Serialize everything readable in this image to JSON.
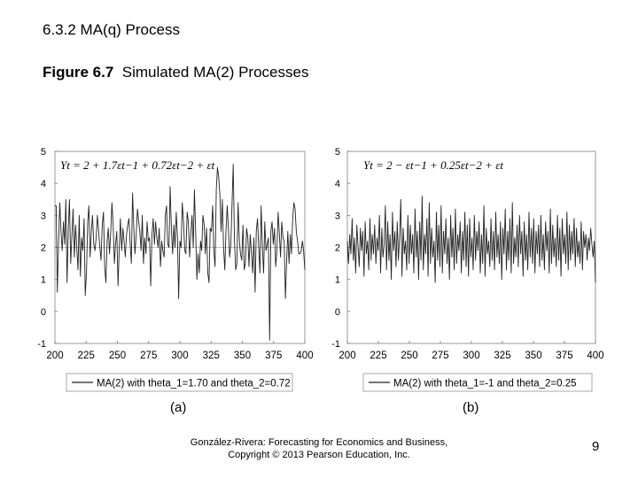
{
  "slide": {
    "section_title": "6.3.2 MA(q) Process",
    "figure_caption_bold": "Figure 6.7",
    "figure_caption_text": "Simulated MA(2) Processes",
    "footer_line1": "González-Rivera: Forecasting for Economics and Business,",
    "footer_line2": "Copyright © 2013 Pearson Education, Inc.",
    "page_number": "9"
  },
  "chart_data": [
    {
      "type": "line",
      "panel_label": "(a)",
      "equation": "Yt = 2 + 1.7εt−1 + 0.72εt−2 + εt",
      "legend": "MA(2) with theta_1=1.70 and theta_2=0.72",
      "x_ticks": [
        "200",
        "225",
        "250",
        "275",
        "300",
        "325",
        "350",
        "375",
        "400"
      ],
      "y_ticks": [
        "5",
        "4",
        "3",
        "2",
        "1",
        "0",
        "-1"
      ],
      "xlim": [
        200,
        400
      ],
      "ylim": [
        -1,
        5
      ],
      "mean_line": 2,
      "series": [
        {
          "name": "MA(2) with theta_1=1.70 and theta_2=0.72",
          "x_start": 200,
          "values": [
            3.3,
            3.3,
            0.6,
            2.2,
            3.4,
            2.5,
            1.9,
            2.8,
            2.1,
            3.5,
            0.9,
            2.6,
            3.5,
            1.5,
            2.4,
            3.2,
            1.7,
            2.7,
            2.0,
            1.3,
            3.0,
            1.1,
            2.3,
            1.9,
            2.9,
            0.5,
            1.2,
            2.8,
            3.3,
            1.7,
            2.5,
            3.0,
            2.1,
            1.9,
            2.3,
            3.0,
            2.5,
            2.0,
            1.6,
            2.7,
            3.1,
            1.4,
            0.9,
            2.2,
            2.6,
            1.8,
            2.5,
            3.4,
            2.7,
            1.5,
            2.1,
            2.5,
            0.8,
            2.0,
            2.9,
            1.9,
            2.6,
            2.2,
            1.7,
            2.4,
            2.7,
            2.9,
            2.1,
            1.5,
            3.7,
            2.6,
            1.8,
            2.4,
            3.2,
            2.8,
            2.5,
            1.9,
            3.0,
            1.5,
            2.3,
            1.8,
            2.8,
            2.2,
            2.3,
            0.8,
            2.4,
            2.9,
            2.1,
            2.8,
            2.3,
            2.0,
            2.6,
            1.4,
            2.2,
            1.9,
            1.7,
            3.0,
            3.3,
            2.1,
            2.0,
            3.9,
            2.6,
            1.8,
            2.7,
            2.0,
            3.1,
            2.3,
            0.4,
            2.2,
            2.0,
            3.4,
            2.8,
            1.9,
            1.8,
            3.1,
            2.8,
            1.7,
            2.4,
            3.0,
            2.0,
            3.8,
            2.5,
            1.0,
            1.8,
            1.2,
            2.2,
            1.9,
            3.0,
            2.7,
            1.8,
            2.6,
            1.2,
            0.9,
            2.6,
            2.5,
            3.3,
            1.9,
            1.4,
            3.8,
            4.5,
            4.2,
            3.6,
            2.5,
            3.5,
            2.0,
            1.3,
            2.5,
            3.3,
            2.6,
            1.7,
            2.1,
            3.4,
            4.6,
            2.2,
            1.3,
            1.5,
            3.4,
            2.2,
            1.8,
            1.6,
            2.7,
            1.3,
            1.5,
            2.6,
            2.3,
            1.4,
            2.4,
            1.8,
            1.2,
            2.3,
            0.6,
            2.5,
            2.9,
            2.0,
            1.2,
            3.3,
            2.0,
            1.2,
            2.8,
            1.9,
            2.1,
            2.3,
            -0.9,
            2.5,
            2.8,
            2.1,
            2.6,
            1.4,
            1.9,
            3.1,
            2.4,
            1.7,
            2.8,
            2.3,
            2.2,
            0.4,
            1.6,
            2.5,
            1.5,
            2.4,
            1.8,
            2.9,
            3.4,
            3.2,
            2.5,
            2.2,
            1.8,
            1.8,
            1.9,
            2.2,
            1.9,
            1.3
          ]
        }
      ]
    },
    {
      "type": "line",
      "panel_label": "(b)",
      "equation": "Yt = 2 − εt−1 + 0.25εt−2 + εt",
      "legend": "MA(2) with theta_1=-1 and theta_2=0.25",
      "x_ticks": [
        "200",
        "225",
        "250",
        "275",
        "300",
        "325",
        "350",
        "375",
        "400"
      ],
      "y_ticks": [
        "5",
        "4",
        "3",
        "2",
        "1",
        "0",
        "-1"
      ],
      "xlim": [
        200,
        400
      ],
      "ylim": [
        -1,
        5
      ],
      "mean_line": null,
      "series": [
        {
          "name": "MA(2) with theta_1=-1 and theta_2=0.25",
          "x_start": 200,
          "values": [
            2.2,
            1.5,
            2.4,
            1.8,
            2.9,
            1.6,
            2.3,
            1.2,
            2.7,
            2.0,
            1.4,
            2.6,
            1.9,
            2.5,
            1.1,
            2.8,
            1.8,
            2.2,
            1.3,
            2.9,
            1.6,
            2.4,
            1.8,
            2.7,
            1.5,
            2.3,
            1.9,
            3.0,
            1.2,
            2.6,
            1.7,
            2.1,
            3.3,
            1.3,
            2.8,
            1.6,
            2.4,
            1.0,
            3.1,
            1.9,
            2.5,
            1.4,
            2.8,
            1.6,
            2.3,
            3.5,
            1.1,
            2.6,
            1.8,
            2.2,
            1.3,
            3.0,
            1.5,
            2.7,
            1.8,
            2.4,
            1.2,
            3.2,
            1.7,
            2.5,
            1.0,
            2.8,
            1.6,
            3.6,
            1.3,
            2.4,
            1.8,
            2.9,
            1.1,
            3.4,
            1.5,
            2.6,
            1.7,
            2.2,
            0.9,
            3.1,
            1.6,
            2.7,
            1.4,
            3.3,
            1.2,
            2.5,
            1.8,
            2.9,
            1.5,
            2.3,
            1.0,
            3.0,
            1.7,
            2.6,
            1.3,
            3.2,
            1.5,
            2.4,
            1.9,
            2.8,
            1.2,
            2.5,
            1.6,
            3.1,
            1.4,
            2.7,
            1.1,
            2.9,
            1.7,
            2.3,
            1.3,
            3.0,
            1.6,
            2.5,
            1.9,
            2.8,
            1.2,
            2.4,
            1.5,
            3.3,
            1.1,
            2.6,
            1.8,
            2.2,
            1.4,
            2.9,
            1.6,
            2.5,
            1.3,
            3.1,
            1.7,
            2.4,
            1.5,
            2.8,
            1.0,
            2.6,
            1.8,
            3.2,
            1.3,
            2.5,
            1.6,
            2.9,
            1.2,
            3.4,
            1.5,
            2.3,
            1.7,
            2.7,
            1.4,
            3.0,
            1.8,
            2.5,
            1.1,
            2.8,
            1.6,
            2.4,
            1.3,
            3.1,
            1.7,
            2.6,
            1.5,
            2.9,
            1.2,
            2.5,
            1.8,
            2.7,
            1.4,
            3.0,
            1.6,
            2.4,
            1.3,
            2.8,
            1.9,
            2.5,
            1.2,
            3.2,
            1.5,
            2.7,
            1.7,
            2.3,
            1.4,
            3.0,
            1.6,
            2.6,
            1.1,
            2.9,
            1.8,
            2.4,
            1.5,
            3.1,
            1.3,
            2.7,
            1.6,
            2.5,
            1.8,
            2.9,
            1.4,
            2.6,
            1.7,
            2.2,
            1.5,
            2.8,
            1.3,
            2.5,
            2.0,
            2.4,
            1.6,
            2.3,
            1.9,
            2.6,
            2.1,
            1.7,
            2.2,
            0.9
          ]
        }
      ]
    }
  ]
}
